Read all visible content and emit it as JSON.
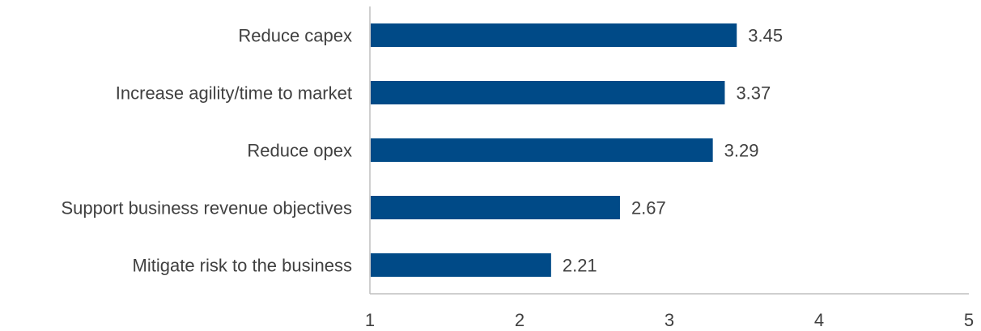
{
  "chart_data": {
    "type": "bar",
    "orientation": "horizontal",
    "categories": [
      "Reduce capex",
      "Increase agility/time to market",
      "Reduce opex",
      "Support business revenue objectives",
      "Mitigate risk to the business"
    ],
    "values": [
      3.45,
      3.37,
      3.29,
      2.67,
      2.21
    ],
    "value_labels": [
      "3.45",
      "3.37",
      "3.29",
      "2.67",
      "2.21"
    ],
    "xlim": [
      1,
      5
    ],
    "xticks": [
      "1",
      "2",
      "3",
      "4",
      "5"
    ],
    "title": "",
    "xlabel": "",
    "ylabel": "",
    "grid": false,
    "legend": "none",
    "bar_color": "#004A87",
    "axis_color": "#BFBFBF",
    "text_color": "#404040"
  }
}
